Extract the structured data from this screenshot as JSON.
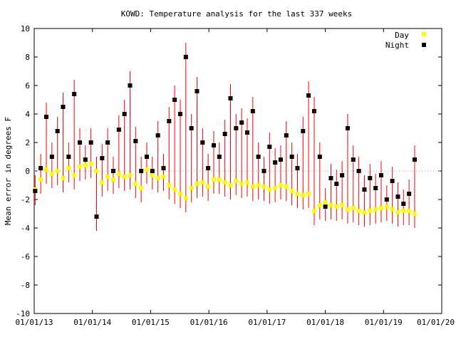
{
  "chart_data": {
    "type": "scatter",
    "title": "KOWD: Temperature analysis for the last 337 weeks",
    "xlabel": "",
    "ylabel": "Mean error in degrees F",
    "x_axis": {
      "ticks": [
        "01/01/13",
        "01/01/14",
        "01/01/15",
        "01/01/16",
        "01/01/17",
        "01/01/18",
        "01/01/19",
        "01/01/20"
      ],
      "range": [
        "2013-01-01",
        "2020-01-01"
      ]
    },
    "y_axis": {
      "ticks": [
        10,
        8,
        6,
        4,
        2,
        0,
        -2,
        -4,
        -6,
        -8,
        -10
      ],
      "range": [
        -10,
        10
      ]
    },
    "reference_line": {
      "y": 0,
      "style": "dotted"
    },
    "legend": {
      "placement": "top-right",
      "entries": [
        {
          "label": "Day",
          "color": "#ffff00",
          "marker": "square"
        },
        {
          "label": "Night",
          "color": "#000000",
          "marker": "square"
        }
      ]
    },
    "error_bar_color": "#ff0000",
    "series": [
      {
        "name": "Day",
        "color": "#ffff00",
        "points": [
          [
            "2013-01-07",
            -1.3
          ],
          [
            "2013-02-11",
            -0.6
          ],
          [
            "2013-03-18",
            0.1
          ],
          [
            "2013-04-22",
            -0.2
          ],
          [
            "2013-05-27",
            0.0
          ],
          [
            "2013-07-01",
            -0.5
          ],
          [
            "2013-08-05",
            0.2
          ],
          [
            "2013-09-09",
            -0.3
          ],
          [
            "2013-10-14",
            0.3
          ],
          [
            "2013-11-18",
            0.4
          ],
          [
            "2013-12-23",
            0.5
          ],
          [
            "2014-01-27",
            0.0
          ],
          [
            "2014-03-03",
            -0.8
          ],
          [
            "2014-04-07",
            -0.4
          ],
          [
            "2014-05-12",
            -0.6
          ],
          [
            "2014-06-16",
            -0.2
          ],
          [
            "2014-07-21",
            -0.4
          ],
          [
            "2014-08-25",
            -0.3
          ],
          [
            "2014-09-29",
            -0.9
          ],
          [
            "2014-11-03",
            -1.2
          ],
          [
            "2014-12-08",
            0.1
          ],
          [
            "2015-01-12",
            -0.3
          ],
          [
            "2015-02-16",
            -0.5
          ],
          [
            "2015-03-23",
            -0.4
          ],
          [
            "2015-04-27",
            -1.0
          ],
          [
            "2015-06-01",
            -1.3
          ],
          [
            "2015-07-06",
            -1.6
          ],
          [
            "2015-08-10",
            -1.9
          ],
          [
            "2015-09-14",
            -1.2
          ],
          [
            "2015-10-19",
            -0.9
          ],
          [
            "2015-11-23",
            -0.8
          ],
          [
            "2015-12-28",
            -1.1
          ],
          [
            "2016-02-01",
            -0.6
          ],
          [
            "2016-03-07",
            -0.6
          ],
          [
            "2016-04-11",
            -0.8
          ],
          [
            "2016-05-16",
            -1.0
          ],
          [
            "2016-06-20",
            -0.7
          ],
          [
            "2016-07-25",
            -0.9
          ],
          [
            "2016-08-29",
            -0.8
          ],
          [
            "2016-10-03",
            -1.1
          ],
          [
            "2016-11-07",
            -1.0
          ],
          [
            "2016-12-12",
            -1.1
          ],
          [
            "2017-01-16",
            -1.3
          ],
          [
            "2017-02-20",
            -1.2
          ],
          [
            "2017-03-27",
            -1.0
          ],
          [
            "2017-05-01",
            -1.1
          ],
          [
            "2017-06-05",
            -1.4
          ],
          [
            "2017-07-10",
            -1.6
          ],
          [
            "2017-08-14",
            -1.7
          ],
          [
            "2017-09-18",
            -1.6
          ],
          [
            "2017-10-23",
            -2.8
          ],
          [
            "2017-11-27",
            -2.4
          ],
          [
            "2018-01-01",
            -2.2
          ],
          [
            "2018-02-05",
            -2.4
          ],
          [
            "2018-03-12",
            -2.5
          ],
          [
            "2018-04-16",
            -2.4
          ],
          [
            "2018-05-21",
            -2.7
          ],
          [
            "2018-06-25",
            -2.6
          ],
          [
            "2018-07-30",
            -2.8
          ],
          [
            "2018-09-03",
            -2.9
          ],
          [
            "2018-10-08",
            -2.8
          ],
          [
            "2018-11-12",
            -2.7
          ],
          [
            "2018-12-17",
            -2.6
          ],
          [
            "2019-01-21",
            -2.5
          ],
          [
            "2019-02-25",
            -2.7
          ],
          [
            "2019-04-01",
            -2.9
          ],
          [
            "2019-05-06",
            -2.8
          ],
          [
            "2019-06-10",
            -2.8
          ],
          [
            "2019-07-15",
            -3.0
          ]
        ]
      },
      {
        "name": "Night",
        "color": "#000000",
        "points": [
          [
            "2013-01-07",
            -1.4
          ],
          [
            "2013-02-11",
            0.2
          ],
          [
            "2013-03-18",
            3.8
          ],
          [
            "2013-04-22",
            1.0
          ],
          [
            "2013-05-27",
            2.8
          ],
          [
            "2013-07-01",
            4.5
          ],
          [
            "2013-08-05",
            1.0
          ],
          [
            "2013-09-09",
            5.4
          ],
          [
            "2013-10-14",
            2.0
          ],
          [
            "2013-11-18",
            0.8
          ],
          [
            "2013-12-23",
            2.0
          ],
          [
            "2014-01-27",
            -3.2
          ],
          [
            "2014-03-03",
            0.9
          ],
          [
            "2014-04-07",
            2.0
          ],
          [
            "2014-05-12",
            0.0
          ],
          [
            "2014-06-16",
            2.9
          ],
          [
            "2014-07-21",
            4.0
          ],
          [
            "2014-08-25",
            6.0
          ],
          [
            "2014-09-29",
            2.1
          ],
          [
            "2014-11-03",
            0.0
          ],
          [
            "2014-12-08",
            1.0
          ],
          [
            "2015-01-12",
            0.0
          ],
          [
            "2015-02-16",
            2.5
          ],
          [
            "2015-03-23",
            0.2
          ],
          [
            "2015-04-27",
            3.5
          ],
          [
            "2015-06-01",
            5.0
          ],
          [
            "2015-07-06",
            4.0
          ],
          [
            "2015-08-10",
            8.0
          ],
          [
            "2015-09-14",
            3.0
          ],
          [
            "2015-10-19",
            5.6
          ],
          [
            "2015-11-23",
            2.0
          ],
          [
            "2015-12-28",
            0.2
          ],
          [
            "2016-02-01",
            1.8
          ],
          [
            "2016-03-07",
            1.0
          ],
          [
            "2016-04-11",
            2.6
          ],
          [
            "2016-05-16",
            5.1
          ],
          [
            "2016-06-20",
            3.0
          ],
          [
            "2016-07-25",
            3.4
          ],
          [
            "2016-08-29",
            2.7
          ],
          [
            "2016-10-03",
            4.2
          ],
          [
            "2016-11-07",
            1.0
          ],
          [
            "2016-12-12",
            0.0
          ],
          [
            "2017-01-16",
            1.7
          ],
          [
            "2017-02-20",
            0.6
          ],
          [
            "2017-03-27",
            0.8
          ],
          [
            "2017-05-01",
            2.5
          ],
          [
            "2017-06-05",
            1.0
          ],
          [
            "2017-07-10",
            0.2
          ],
          [
            "2017-08-14",
            2.8
          ],
          [
            "2017-09-18",
            5.3
          ],
          [
            "2017-10-23",
            4.2
          ],
          [
            "2017-11-27",
            1.0
          ],
          [
            "2018-01-01",
            -2.5
          ],
          [
            "2018-02-05",
            -0.5
          ],
          [
            "2018-03-12",
            -0.9
          ],
          [
            "2018-04-16",
            -0.3
          ],
          [
            "2018-05-21",
            3.0
          ],
          [
            "2018-06-25",
            0.8
          ],
          [
            "2018-07-30",
            0.0
          ],
          [
            "2018-09-03",
            -1.3
          ],
          [
            "2018-10-08",
            -0.5
          ],
          [
            "2018-11-12",
            -1.2
          ],
          [
            "2018-12-17",
            -0.3
          ],
          [
            "2019-01-21",
            -2.0
          ],
          [
            "2019-02-25",
            -0.7
          ],
          [
            "2019-04-01",
            -1.8
          ],
          [
            "2019-05-06",
            -2.3
          ],
          [
            "2019-06-10",
            -1.6
          ],
          [
            "2019-07-15",
            0.8
          ]
        ]
      }
    ]
  }
}
